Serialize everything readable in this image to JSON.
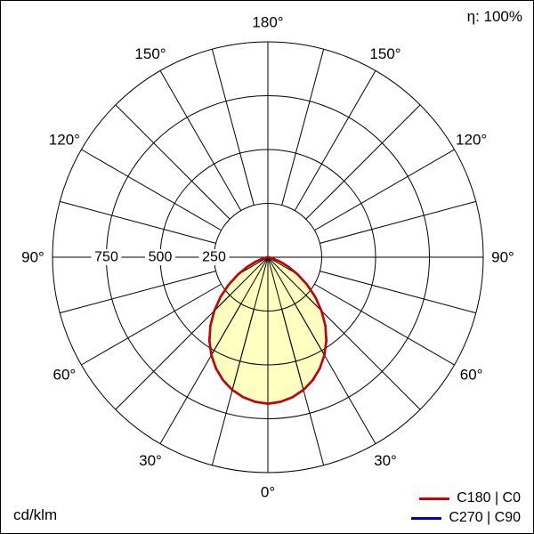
{
  "header": {
    "efficiency_label": "η: 100%"
  },
  "footer": {
    "unit_label": "cd/klm"
  },
  "legend": [
    {
      "label": "C180 | C0",
      "color": "#cc0000"
    },
    {
      "label": "C270 | C90",
      "color": "#0000cc"
    }
  ],
  "chart_data": {
    "type": "polar",
    "unit": "cd/klm",
    "efficiency": "η: 100%",
    "radial_ticks": [
      250,
      500,
      750
    ],
    "radial_max": 1000,
    "angle_tick_step_deg": 15,
    "angle_label_step_deg": 30,
    "angle_labels": [
      "0°",
      "30°",
      "60°",
      "90°",
      "120°",
      "150°",
      "180°"
    ],
    "fill_color": "#ffffc0",
    "grid_color": "#000000",
    "legend_position": "bottom-right",
    "series": [
      {
        "name": "C180 | C0",
        "color": "#cc0000",
        "gamma_deg": [
          0,
          5,
          10,
          15,
          20,
          25,
          30,
          35,
          40,
          45,
          50,
          55,
          60,
          65,
          70,
          75,
          80,
          85,
          90
        ],
        "values": [
          680,
          674,
          660,
          638,
          608,
          570,
          525,
          473,
          415,
          352,
          287,
          222,
          160,
          105,
          60,
          28,
          8,
          2,
          0
        ]
      },
      {
        "name": "C270 | C90",
        "color": "#0000cc",
        "gamma_deg": [
          0,
          5,
          10,
          15,
          20,
          25,
          30,
          35,
          40,
          45,
          50,
          55,
          60,
          65,
          70,
          75,
          80,
          85,
          90
        ],
        "values": [
          680,
          674,
          660,
          638,
          608,
          570,
          525,
          473,
          415,
          352,
          287,
          222,
          160,
          105,
          60,
          28,
          8,
          2,
          0
        ]
      }
    ]
  }
}
